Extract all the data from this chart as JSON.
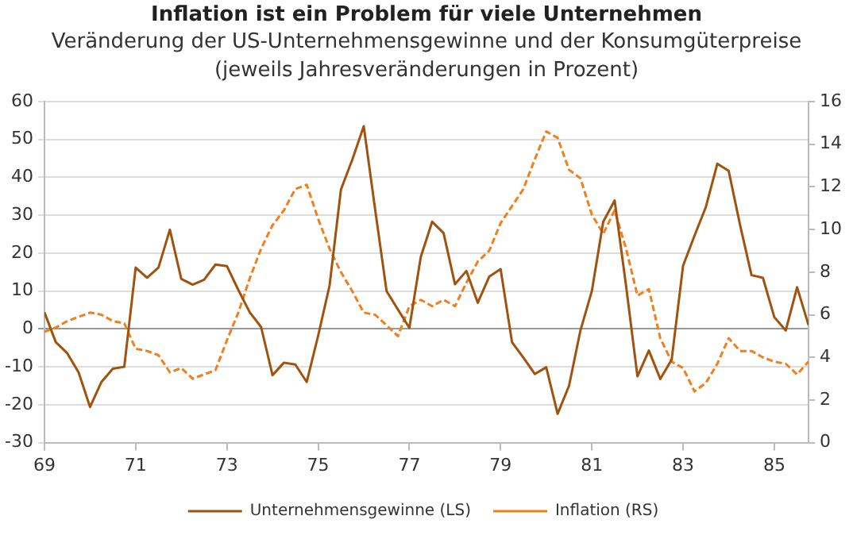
{
  "chart_data": {
    "type": "line",
    "title": "Inflation ist ein Problem für viele Unternehmen",
    "subtitle": "Veränderung der US-Unternehmensgewinne und der Konsumgüterpreise\n(jeweils Jahresveränderungen in Prozent)",
    "x": [
      69,
      69.25,
      69.5,
      69.75,
      70,
      70.25,
      70.5,
      70.75,
      71,
      71.25,
      71.5,
      71.75,
      72,
      72.25,
      72.5,
      72.75,
      73,
      73.25,
      73.5,
      73.75,
      74,
      74.25,
      74.5,
      74.75,
      75,
      75.25,
      75.5,
      75.75,
      76,
      76.25,
      76.5,
      76.75,
      77,
      77.25,
      77.5,
      77.75,
      78,
      78.25,
      78.5,
      78.75,
      79,
      79.25,
      79.5,
      79.75,
      80,
      80.25,
      80.5,
      80.75,
      81,
      81.25,
      81.5,
      81.75,
      82,
      82.25,
      82.5,
      82.75,
      83,
      83.25,
      83.5,
      83.75,
      84,
      84.25,
      84.5,
      84.75,
      85,
      85.25,
      85.5,
      85.75
    ],
    "series": [
      {
        "name": "Unternehmensgewinne (LS)",
        "color": "#a0520f",
        "line_style": "solid",
        "values": [
          4.4,
          -3.5,
          -6.4,
          -11.5,
          -20.6,
          -14,
          -10.5,
          -10,
          16.2,
          13.5,
          16.2,
          26.2,
          13.2,
          11.7,
          13,
          17,
          16.6,
          10.3,
          4.4,
          0.5,
          -12.2,
          -8.9,
          -9.4,
          -14,
          -1.8,
          11.4,
          36.8,
          44.7,
          53.5,
          31.5,
          10,
          5.1,
          0.3,
          19,
          28.3,
          25.3,
          11.8,
          15.3,
          6.9,
          13.8,
          15.8,
          -3.5,
          -7.6,
          -11.9,
          -10.1,
          -22.4,
          -15,
          -0.4,
          10,
          28.3,
          33.9,
          11.4,
          -12.5,
          -5.7,
          -13.2,
          -8.1,
          16.7,
          24.6,
          32.2,
          43.6,
          41.7,
          27.4,
          14.2,
          13.5,
          3.1,
          -0.4,
          11,
          1
        ]
      },
      {
        "name": "Inflation (RS)",
        "color": "#f07f1e",
        "line_style": "dashed",
        "axis": "y2",
        "values": [
          5.2,
          5.4,
          5.7,
          5.9,
          6.1,
          6,
          5.7,
          5.6,
          4.4,
          4.3,
          4.1,
          3.3,
          3.5,
          3,
          3.2,
          3.4,
          4.8,
          6.1,
          7.7,
          9.1,
          10.2,
          10.9,
          11.9,
          12.1,
          10.5,
          9.1,
          8,
          7.1,
          6.1,
          6,
          5.5,
          5,
          6.4,
          6.7,
          6.4,
          6.7,
          6.4,
          7.5,
          8.5,
          9,
          10.3,
          11.1,
          11.9,
          13.3,
          14.6,
          14.3,
          12.8,
          12.4,
          10.7,
          9.8,
          10.9,
          9.1,
          6.9,
          7.2,
          4.9,
          3.8,
          3.5,
          2.4,
          2.8,
          3.7,
          4.9,
          4.3,
          4.3,
          4,
          3.8,
          3.7,
          3.2,
          3.8
        ]
      }
    ],
    "xlim": [
      69,
      85.75
    ],
    "xticks": [
      69,
      71,
      73,
      75,
      77,
      79,
      81,
      83,
      85
    ],
    "ylim": [
      -30,
      60
    ],
    "yticks": [
      -30,
      -20,
      -10,
      0,
      10,
      20,
      30,
      40,
      50,
      60
    ],
    "y2lim": [
      0,
      16
    ],
    "y2ticks": [
      0,
      2,
      4,
      6,
      8,
      10,
      12,
      14,
      16
    ],
    "grid": "y",
    "legend": "bottom",
    "marker": "none"
  }
}
